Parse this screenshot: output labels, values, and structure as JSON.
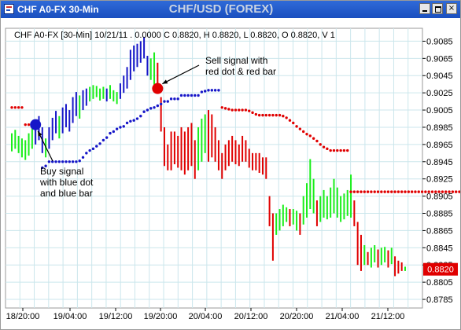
{
  "window": {
    "title": "CHF A0-FX 30-Min",
    "chart_title": "CHF/USD (FOREX)",
    "buttons": {
      "minimize": "",
      "maximize": "",
      "close": "×"
    }
  },
  "colors": {
    "up": "#1aee1a",
    "down": "#1616c8",
    "sell": "#e00000",
    "grid": "#cbe6ec",
    "last_price_bg": "#e00000"
  },
  "chart_data": {
    "type": "bar",
    "info_line": "CHF A0-FX [30-Min] 10/21/11 . 0.0000 C 0.8820, H 0.8820, L 0.8820, O 0.8820, V 1",
    "ylim": [
      0.8775,
      0.91
    ],
    "y_ticks": [
      "0.9085",
      "0.9065",
      "0.9045",
      "0.9025",
      "0.9005",
      "0.8985",
      "0.8965",
      "0.8945",
      "0.8925",
      "0.8905",
      "0.8885",
      "0.8865",
      "0.8845",
      "0.8825",
      "0.8805",
      "0.8785"
    ],
    "x_ticks": [
      "18/20:00",
      "19/04:00",
      "19/12:00",
      "19/20:00",
      "20/04:00",
      "20/12:00",
      "20/20:00",
      "21/04:00",
      "21/12:00"
    ],
    "last_price": "0.8820",
    "bars": [
      [
        0.8957,
        0.8978,
        "g"
      ],
      [
        0.896,
        0.8982,
        "g"
      ],
      [
        0.8955,
        0.8975,
        "g"
      ],
      [
        0.895,
        0.8972,
        "g"
      ],
      [
        0.8947,
        0.897,
        "g"
      ],
      [
        0.8952,
        0.8978,
        "g"
      ],
      [
        0.896,
        0.8985,
        "g"
      ],
      [
        0.8965,
        0.899,
        "b"
      ],
      [
        0.897,
        0.8998,
        "b"
      ],
      [
        0.8955,
        0.8985,
        "b"
      ],
      [
        0.895,
        0.8972,
        "g"
      ],
      [
        0.896,
        0.8985,
        "b"
      ],
      [
        0.897,
        0.8996,
        "b"
      ],
      [
        0.8978,
        0.9004,
        "b"
      ],
      [
        0.8972,
        0.8998,
        "g"
      ],
      [
        0.8978,
        0.9008,
        "b"
      ],
      [
        0.8985,
        0.9012,
        "b"
      ],
      [
        0.898,
        0.9005,
        "b"
      ],
      [
        0.899,
        0.902,
        "b"
      ],
      [
        0.8998,
        0.9026,
        "b"
      ],
      [
        0.8995,
        0.9022,
        "g"
      ],
      [
        0.9005,
        0.9028,
        "b"
      ],
      [
        0.901,
        0.903,
        "b"
      ],
      [
        0.9015,
        0.9032,
        "g"
      ],
      [
        0.9018,
        0.9034,
        "g"
      ],
      [
        0.902,
        0.9033,
        "g"
      ],
      [
        0.9016,
        0.903,
        "g"
      ],
      [
        0.9018,
        0.9032,
        "g"
      ],
      [
        0.9015,
        0.903,
        "b"
      ],
      [
        0.9018,
        0.9034,
        "g"
      ],
      [
        0.9015,
        0.9028,
        "g"
      ],
      [
        0.9012,
        0.9026,
        "g"
      ],
      [
        0.9018,
        0.9036,
        "b"
      ],
      [
        0.9025,
        0.9045,
        "b"
      ],
      [
        0.903,
        0.9055,
        "b"
      ],
      [
        0.904,
        0.9075,
        "b"
      ],
      [
        0.905,
        0.908,
        "b"
      ],
      [
        0.9055,
        0.9082,
        "b"
      ],
      [
        0.906,
        0.9085,
        "b"
      ],
      [
        0.9065,
        0.909,
        "b"
      ],
      [
        0.9045,
        0.9068,
        "b"
      ],
      [
        0.904,
        0.9065,
        "g"
      ],
      [
        0.903,
        0.9072,
        "g"
      ],
      [
        0.9025,
        0.906,
        "r"
      ],
      [
        0.898,
        0.902,
        "r"
      ],
      [
        0.894,
        0.8985,
        "r"
      ],
      [
        0.8935,
        0.8965,
        "r"
      ],
      [
        0.8935,
        0.898,
        "r"
      ],
      [
        0.8942,
        0.898,
        "r"
      ],
      [
        0.8938,
        0.8975,
        "r"
      ],
      [
        0.8935,
        0.8985,
        "r"
      ],
      [
        0.893,
        0.898,
        "r"
      ],
      [
        0.8935,
        0.8985,
        "r"
      ],
      [
        0.894,
        0.899,
        "r"
      ],
      [
        0.8925,
        0.897,
        "r"
      ],
      [
        0.8935,
        0.8985,
        "g"
      ],
      [
        0.8945,
        0.8995,
        "g"
      ],
      [
        0.8955,
        0.9,
        "g"
      ],
      [
        0.8945,
        0.9005,
        "r"
      ],
      [
        0.895,
        0.9,
        "r"
      ],
      [
        0.8945,
        0.8985,
        "r"
      ],
      [
        0.8935,
        0.897,
        "r"
      ],
      [
        0.8925,
        0.8955,
        "r"
      ],
      [
        0.8935,
        0.8965,
        "r"
      ],
      [
        0.894,
        0.897,
        "r"
      ],
      [
        0.8945,
        0.8975,
        "r"
      ],
      [
        0.8942,
        0.897,
        "r"
      ],
      [
        0.894,
        0.8965,
        "r"
      ],
      [
        0.8945,
        0.8975,
        "r"
      ],
      [
        0.8945,
        0.897,
        "r"
      ],
      [
        0.8938,
        0.896,
        "r"
      ],
      [
        0.8935,
        0.8955,
        "r"
      ],
      [
        0.8935,
        0.8955,
        "r"
      ],
      [
        0.8932,
        0.8955,
        "r"
      ],
      [
        0.893,
        0.895,
        "r"
      ],
      [
        0.8925,
        0.895,
        "r"
      ],
      [
        0.887,
        0.8905,
        "r"
      ],
      [
        0.883,
        0.8885,
        "r"
      ],
      [
        0.886,
        0.8885,
        "g"
      ],
      [
        0.8865,
        0.889,
        "g"
      ],
      [
        0.887,
        0.8895,
        "g"
      ],
      [
        0.8875,
        0.8892,
        "g"
      ],
      [
        0.887,
        0.889,
        "r"
      ],
      [
        0.8872,
        0.889,
        "g"
      ],
      [
        0.8865,
        0.8888,
        "g"
      ],
      [
        0.886,
        0.8885,
        "r"
      ],
      [
        0.8872,
        0.8905,
        "g"
      ],
      [
        0.888,
        0.892,
        "g"
      ],
      [
        0.889,
        0.8948,
        "g"
      ],
      [
        0.8885,
        0.8925,
        "g"
      ],
      [
        0.887,
        0.89,
        "r"
      ],
      [
        0.8875,
        0.8905,
        "g"
      ],
      [
        0.888,
        0.8912,
        "g"
      ],
      [
        0.8878,
        0.8905,
        "g"
      ],
      [
        0.888,
        0.8915,
        "g"
      ],
      [
        0.8885,
        0.8925,
        "g"
      ],
      [
        0.888,
        0.8915,
        "g"
      ],
      [
        0.8875,
        0.8905,
        "g"
      ],
      [
        0.8878,
        0.8908,
        "g"
      ],
      [
        0.8882,
        0.8912,
        "g"
      ],
      [
        0.888,
        0.893,
        "g"
      ],
      [
        0.887,
        0.89,
        "r"
      ],
      [
        0.8825,
        0.8875,
        "r"
      ],
      [
        0.8818,
        0.886,
        "r"
      ],
      [
        0.8825,
        0.8848,
        "g"
      ],
      [
        0.8825,
        0.884,
        "r"
      ],
      [
        0.8822,
        0.8845,
        "g"
      ],
      [
        0.8828,
        0.8848,
        "g"
      ],
      [
        0.8822,
        0.8843,
        "r"
      ],
      [
        0.8825,
        0.8845,
        "g"
      ],
      [
        0.8828,
        0.8846,
        "g"
      ],
      [
        0.8822,
        0.8842,
        "r"
      ],
      [
        0.8826,
        0.8845,
        "g"
      ],
      [
        0.8812,
        0.8835,
        "r"
      ],
      [
        0.8815,
        0.883,
        "r"
      ],
      [
        0.8818,
        0.8828,
        "r"
      ],
      [
        0.8818,
        0.8823,
        "g"
      ]
    ],
    "blue_dots": [
      [
        9,
        0.8938
      ],
      [
        10,
        0.894
      ],
      [
        11,
        0.8945
      ],
      [
        12,
        0.8945
      ],
      [
        13,
        0.8945
      ],
      [
        14,
        0.8945
      ],
      [
        15,
        0.8945
      ],
      [
        16,
        0.8945
      ],
      [
        17,
        0.8945
      ],
      [
        18,
        0.8945
      ],
      [
        19,
        0.8945
      ],
      [
        20,
        0.8946
      ],
      [
        21,
        0.895
      ],
      [
        22,
        0.8955
      ],
      [
        23,
        0.8958
      ],
      [
        24,
        0.896
      ],
      [
        25,
        0.8963
      ],
      [
        26,
        0.8966
      ],
      [
        27,
        0.897
      ],
      [
        28,
        0.8973
      ],
      [
        29,
        0.8978
      ],
      [
        30,
        0.898
      ],
      [
        31,
        0.8983
      ],
      [
        32,
        0.8985
      ],
      [
        33,
        0.8986
      ],
      [
        34,
        0.899
      ],
      [
        35,
        0.8992
      ],
      [
        36,
        0.8993
      ],
      [
        37,
        0.8995
      ],
      [
        38,
        0.8998
      ],
      [
        39,
        0.9003
      ],
      [
        40,
        0.9005
      ],
      [
        41,
        0.9007
      ],
      [
        42,
        0.9008
      ],
      [
        43,
        0.901
      ],
      [
        44,
        0.9012
      ],
      [
        45,
        0.9015
      ],
      [
        46,
        0.9015
      ],
      [
        47,
        0.9018
      ],
      [
        48,
        0.9018
      ],
      [
        49,
        0.9018
      ],
      [
        50,
        0.9022
      ],
      [
        51,
        0.9022
      ],
      [
        52,
        0.9022
      ],
      [
        53,
        0.9022
      ],
      [
        54,
        0.9022
      ],
      [
        55,
        0.9022
      ],
      [
        56,
        0.9026
      ],
      [
        57,
        0.9027
      ],
      [
        58,
        0.9028
      ],
      [
        59,
        0.9028
      ],
      [
        60,
        0.9028
      ],
      [
        61,
        0.9028
      ]
    ],
    "red_dots": [
      [
        0,
        0.9008
      ],
      [
        1,
        0.9008
      ],
      [
        2,
        0.9008
      ],
      [
        3,
        0.9008
      ],
      [
        4,
        0.8988
      ],
      [
        5,
        0.8988
      ],
      [
        6,
        0.8988
      ],
      [
        62,
        0.9008
      ],
      [
        63,
        0.9007
      ],
      [
        64,
        0.9006
      ],
      [
        65,
        0.9005
      ],
      [
        66,
        0.9005
      ],
      [
        67,
        0.9005
      ],
      [
        68,
        0.9005
      ],
      [
        69,
        0.9005
      ],
      [
        70,
        0.9004
      ],
      [
        71,
        0.9002
      ],
      [
        72,
        0.9
      ],
      [
        73,
        0.8999
      ],
      [
        74,
        0.8999
      ],
      [
        75,
        0.8999
      ],
      [
        76,
        0.8999
      ],
      [
        77,
        0.8999
      ],
      [
        78,
        0.8999
      ],
      [
        79,
        0.8999
      ],
      [
        80,
        0.8998
      ],
      [
        81,
        0.8996
      ],
      [
        82,
        0.8993
      ],
      [
        83,
        0.899
      ],
      [
        84,
        0.8986
      ],
      [
        85,
        0.8983
      ],
      [
        86,
        0.898
      ],
      [
        87,
        0.8977
      ],
      [
        88,
        0.8975
      ],
      [
        89,
        0.8972
      ],
      [
        90,
        0.8969
      ],
      [
        91,
        0.8965
      ],
      [
        92,
        0.8962
      ],
      [
        93,
        0.896
      ],
      [
        94,
        0.8958
      ],
      [
        95,
        0.8958
      ],
      [
        96,
        0.8958
      ],
      [
        97,
        0.8958
      ],
      [
        98,
        0.8958
      ],
      [
        99,
        0.8958
      ],
      [
        100,
        0.891
      ],
      [
        101,
        0.891
      ],
      [
        102,
        0.891
      ],
      [
        103,
        0.891
      ],
      [
        104,
        0.891
      ],
      [
        105,
        0.891
      ],
      [
        106,
        0.891
      ],
      [
        107,
        0.891
      ],
      [
        108,
        0.891
      ],
      [
        109,
        0.891
      ],
      [
        110,
        0.891
      ],
      [
        111,
        0.891
      ],
      [
        112,
        0.891
      ],
      [
        113,
        0.891
      ],
      [
        114,
        0.891
      ],
      [
        115,
        0.891
      ],
      [
        116,
        0.891
      ],
      [
        117,
        0.891
      ],
      [
        118,
        0.891
      ],
      [
        119,
        0.891
      ],
      [
        120,
        0.891
      ],
      [
        121,
        0.891
      ],
      [
        122,
        0.891
      ],
      [
        123,
        0.891
      ],
      [
        124,
        0.891
      ],
      [
        125,
        0.891
      ],
      [
        126,
        0.891
      ],
      [
        127,
        0.891
      ],
      [
        128,
        0.891
      ],
      [
        129,
        0.891
      ],
      [
        130,
        0.891
      ],
      [
        131,
        0.891
      ],
      [
        132,
        0.891
      ],
      [
        133,
        0.8898
      ],
      [
        134,
        0.8897
      ],
      [
        135,
        0.8896
      ],
      [
        136,
        0.8895
      ],
      [
        137,
        0.8893
      ],
      [
        138,
        0.889
      ],
      [
        139,
        0.8887
      ],
      [
        140,
        0.8883
      ],
      [
        141,
        0.8878
      ],
      [
        142,
        0.8873
      ],
      [
        143,
        0.8868
      ],
      [
        144,
        0.8862
      ],
      [
        145,
        0.8857
      ]
    ],
    "signals": [
      {
        "type": "buy",
        "color": "#1616c8",
        "bar": 7,
        "value": 0.8988,
        "label": [
          "Buy signal",
          "with blue dot",
          "and blue bar"
        ]
      },
      {
        "type": "sell",
        "color": "#e00000",
        "bar": 43,
        "value": 0.903,
        "label": [
          "Sell signal with",
          "red dot & red bar"
        ]
      }
    ]
  }
}
